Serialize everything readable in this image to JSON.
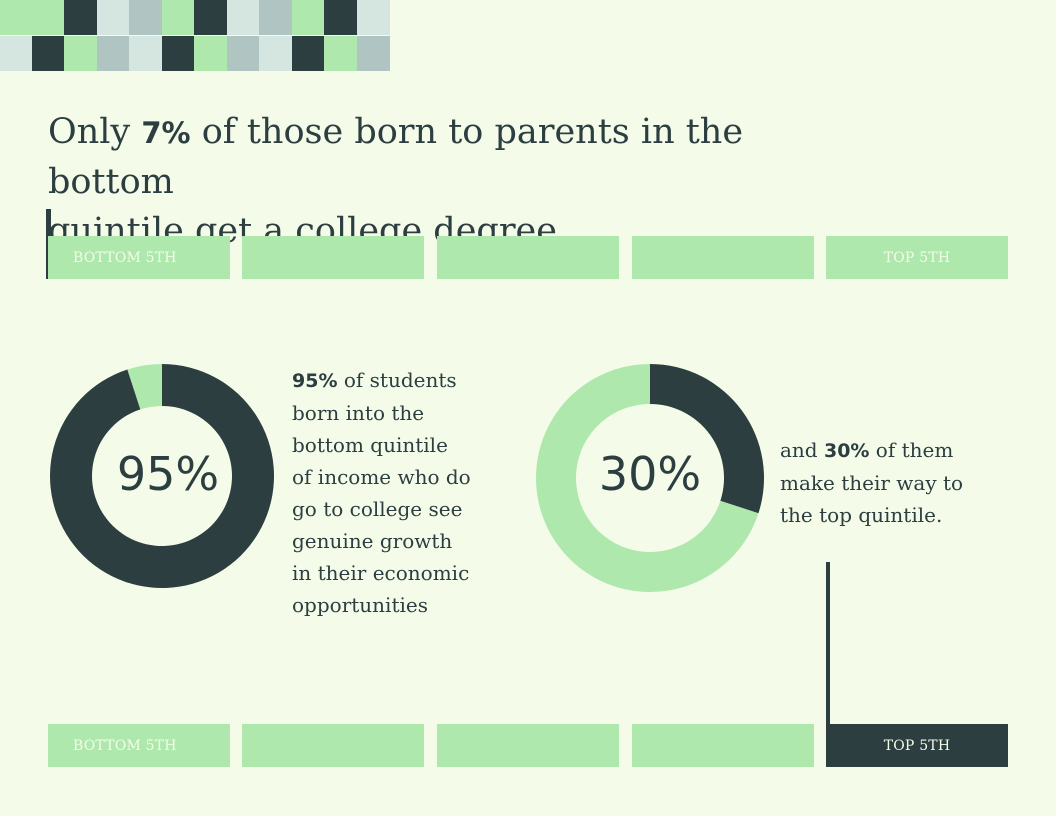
{
  "colors": {
    "background": "#f4fbe9",
    "dark": "#2c3e40",
    "light_green": "#aee8ad",
    "mint": "#d5e6e1",
    "grey_teal": "#b0c5c1"
  },
  "headline": {
    "prefix": "Only ",
    "highlight": "7%",
    "rest_line1": " of those born to parents in the bottom",
    "line2": "quintile get a college degree."
  },
  "top_quintiles": {
    "labels": [
      "BOTTOM 5TH",
      "",
      "",
      "",
      "TOP 5TH"
    ]
  },
  "bottom_quintiles": {
    "labels": [
      "BOTTOM 5TH",
      "",
      "",
      "",
      "TOP 5TH"
    ]
  },
  "left_text": {
    "highlight": "95%",
    "lines": [
      " of students",
      "born into the",
      "bottom quintile",
      "of income who do",
      "go to college see",
      "genuine growth",
      "in their economic",
      "opportunities"
    ]
  },
  "right_text": {
    "prefix": "and ",
    "highlight": "30%",
    "lines": [
      " of them",
      "make their way to",
      "the top quintile."
    ]
  },
  "chart_data": [
    {
      "type": "pie",
      "variant": "donut",
      "label": "95%",
      "categories": [
        "",
        ""
      ],
      "values": [
        95,
        5
      ],
      "colors": [
        "#2c3e40",
        "#aee8ad"
      ]
    },
    {
      "type": "pie",
      "variant": "donut",
      "label": "30%",
      "categories": [
        "",
        ""
      ],
      "values": [
        30,
        70
      ],
      "colors": [
        "#2c3e40",
        "#aee8ad"
      ]
    }
  ]
}
